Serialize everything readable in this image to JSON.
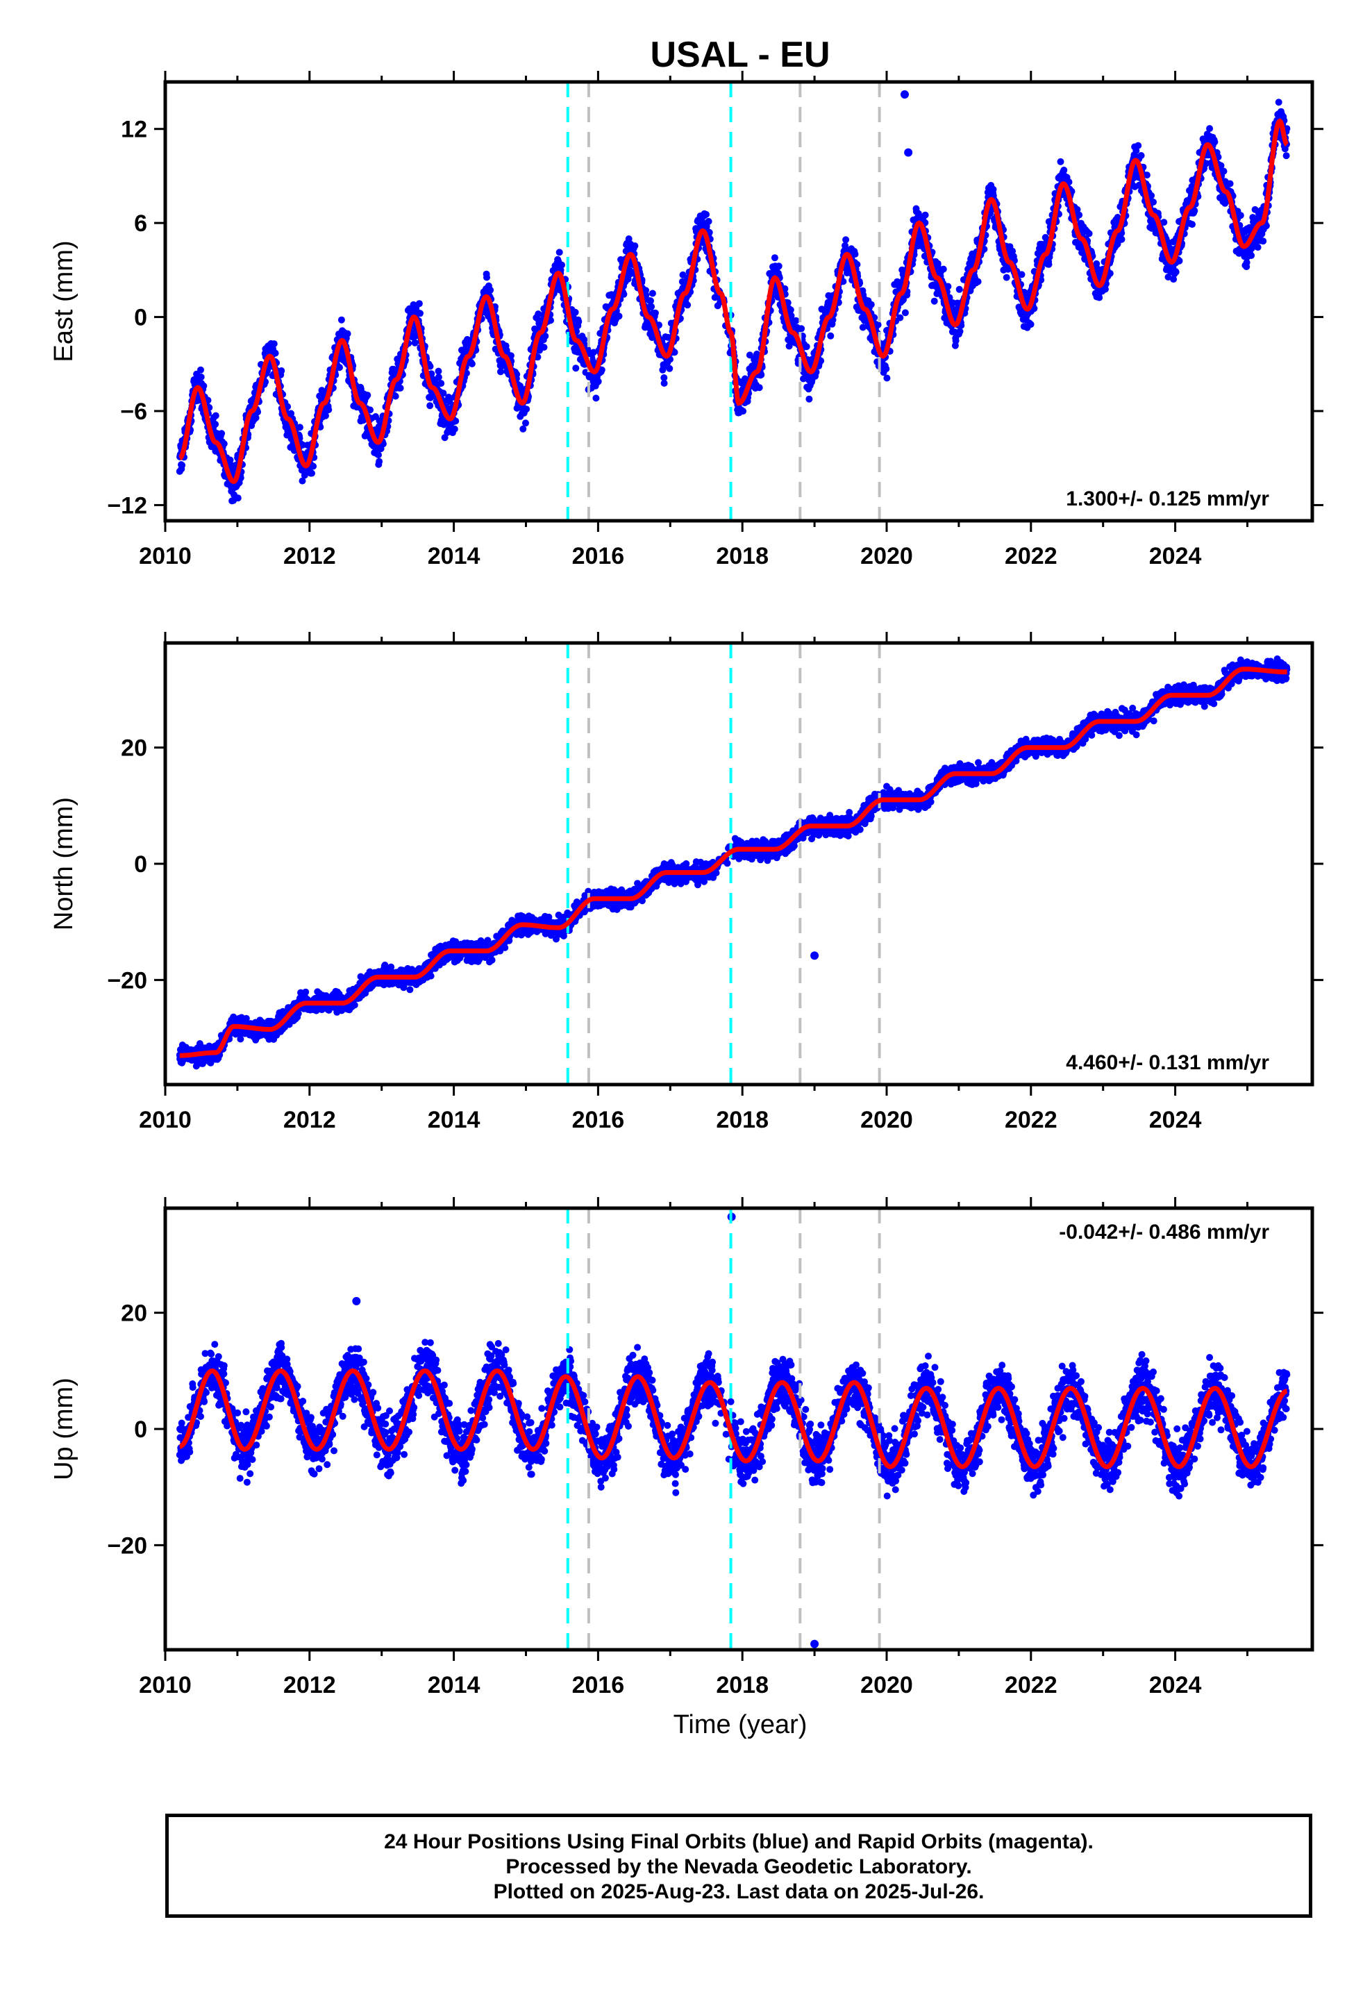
{
  "title": "USAL - EU",
  "colors": {
    "data_points": "#0000ff",
    "model_line": "#ff0000",
    "equipment_change": "#00ffff",
    "other_event": "#c0c0c0",
    "frame": "#000000"
  },
  "x_axis": {
    "label": "Time (year)",
    "range": [
      2010.0,
      2025.9
    ],
    "ticks": [
      2010,
      2012,
      2014,
      2016,
      2018,
      2020,
      2022,
      2024
    ]
  },
  "event_lines": [
    {
      "year": 2015.58,
      "kind": "equipment_change"
    },
    {
      "year": 2015.87,
      "kind": "other_event"
    },
    {
      "year": 2017.84,
      "kind": "equipment_change"
    },
    {
      "year": 2018.8,
      "kind": "other_event"
    },
    {
      "year": 2019.9,
      "kind": "other_event"
    }
  ],
  "chart_data": [
    {
      "type": "scatter",
      "ylabel": "East (mm)",
      "ylim": [
        -13,
        15
      ],
      "yticks": [
        -12,
        -6,
        0,
        6,
        12
      ],
      "rate_text": "1.300+/- 0.125 mm/yr",
      "rate_position": "bottom-right",
      "series": [
        {
          "x": [
            2010.2,
            2010.45,
            2010.7,
            2010.95,
            2011.2,
            2011.45,
            2011.7,
            2011.95,
            2012.2,
            2012.45,
            2012.7,
            2012.95,
            2013.2,
            2013.45,
            2013.7,
            2013.95,
            2014.2,
            2014.45,
            2014.7,
            2014.95,
            2015.2,
            2015.45,
            2015.7,
            2015.95,
            2016.2,
            2016.45,
            2016.7,
            2016.95,
            2017.2,
            2017.45,
            2017.7,
            2017.84,
            2017.95,
            2018.2,
            2018.45,
            2018.7,
            2018.95,
            2019.2,
            2019.45,
            2019.7,
            2019.95,
            2020.2,
            2020.45,
            2020.7,
            2020.95,
            2021.2,
            2021.45,
            2021.7,
            2021.95,
            2022.2,
            2022.45,
            2022.7,
            2022.95,
            2023.2,
            2023.45,
            2023.7,
            2023.95,
            2024.2,
            2024.45,
            2024.7,
            2024.95,
            2025.2,
            2025.45,
            2025.55
          ],
          "y": [
            -9,
            -4.5,
            -8,
            -10.5,
            -6,
            -2.5,
            -6.5,
            -9.5,
            -5.5,
            -1.5,
            -5.5,
            -8,
            -4,
            0,
            -4.5,
            -6.5,
            -2.5,
            1.3,
            -2.5,
            -5.5,
            -1,
            2.8,
            -1.5,
            -3.5,
            0.5,
            4,
            0,
            -2.5,
            1.5,
            5.5,
            1.5,
            -1,
            -5.5,
            -3.5,
            2.5,
            -1,
            -3.5,
            0,
            4,
            0.5,
            -2.5,
            1.5,
            6,
            2.5,
            -0.5,
            3,
            7.5,
            3.5,
            0.5,
            4,
            8.5,
            5,
            2,
            5.5,
            10,
            6.5,
            3.5,
            7,
            11,
            8,
            4.5,
            6,
            12.5,
            11
          ]
        }
      ],
      "outliers": [
        {
          "x": 2020.25,
          "y": 14.2
        },
        {
          "x": 2020.3,
          "y": 10.5
        }
      ]
    },
    {
      "type": "scatter",
      "ylabel": "North (mm)",
      "ylim": [
        -38,
        38
      ],
      "yticks": [
        -20,
        0,
        20
      ],
      "rate_text": "4.460+/- 0.131 mm/yr",
      "rate_position": "bottom-right",
      "series": [
        {
          "x": [
            2010.2,
            2010.7,
            2010.95,
            2011.45,
            2011.95,
            2012.45,
            2012.95,
            2013.45,
            2013.95,
            2014.45,
            2014.95,
            2015.45,
            2015.95,
            2016.45,
            2016.95,
            2017.45,
            2017.95,
            2018.45,
            2018.95,
            2019.45,
            2019.95,
            2020.45,
            2020.95,
            2021.45,
            2021.95,
            2022.45,
            2022.95,
            2023.45,
            2023.95,
            2024.45,
            2024.95,
            2025.55
          ],
          "y": [
            -33,
            -32.5,
            -28,
            -28.5,
            -24,
            -24,
            -19.5,
            -19.5,
            -15,
            -15,
            -10.5,
            -11,
            -6,
            -6,
            -1.5,
            -1.5,
            2.5,
            2.5,
            6.5,
            6.5,
            11,
            11,
            15.5,
            15.5,
            20,
            20,
            24.5,
            24.5,
            29,
            29,
            33.5,
            33
          ]
        }
      ],
      "outliers": [
        {
          "x": 2019.0,
          "y": -15.8
        }
      ]
    },
    {
      "type": "scatter",
      "ylabel": "Up (mm)",
      "ylim": [
        -38,
        38
      ],
      "yticks": [
        -20,
        0,
        20
      ],
      "rate_text": "-0.042+/- 0.486 mm/yr",
      "rate_position": "top-right",
      "series": [
        {
          "x": [
            2010.2,
            2010.65,
            2011.1,
            2011.6,
            2012.1,
            2012.6,
            2013.1,
            2013.6,
            2014.1,
            2014.6,
            2015.1,
            2015.55,
            2016.05,
            2016.55,
            2017.05,
            2017.55,
            2018.05,
            2018.55,
            2019.05,
            2019.55,
            2020.05,
            2020.55,
            2021.05,
            2021.55,
            2022.05,
            2022.55,
            2023.05,
            2023.55,
            2024.05,
            2024.55,
            2025.05,
            2025.55
          ],
          "y": [
            -3,
            10,
            -3.5,
            10,
            -3.5,
            10,
            -3.5,
            10,
            -3.5,
            10,
            -3.5,
            9,
            -5,
            9,
            -5,
            8,
            -5.5,
            8,
            -5.5,
            8,
            -6.5,
            7,
            -6.5,
            7,
            -6.5,
            7,
            -6.5,
            7,
            -6.5,
            7,
            -6.5,
            6.5
          ]
        }
      ],
      "outliers": [
        {
          "x": 2017.85,
          "y": 36.5
        },
        {
          "x": 2019.0,
          "y": -37
        },
        {
          "x": 2012.65,
          "y": 22
        }
      ]
    }
  ],
  "footer": {
    "lines": [
      "24 Hour Positions Using Final Orbits (blue) and Rapid Orbits (magenta).",
      "Processed by the Nevada Geodetic Laboratory.",
      "Plotted on 2025-Aug-23. Last data on 2025-Jul-26."
    ]
  }
}
